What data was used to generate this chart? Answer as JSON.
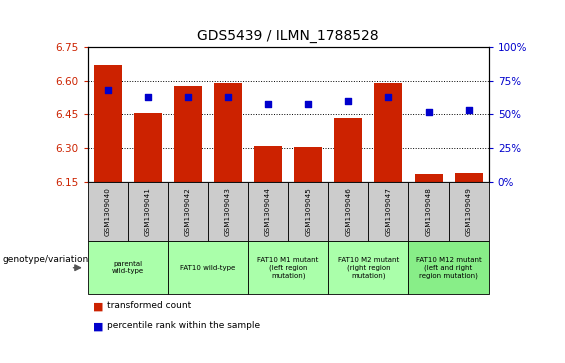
{
  "title": "GDS5439 / ILMN_1788528",
  "samples": [
    "GSM1309040",
    "GSM1309041",
    "GSM1309042",
    "GSM1309043",
    "GSM1309044",
    "GSM1309045",
    "GSM1309046",
    "GSM1309047",
    "GSM1309048",
    "GSM1309049"
  ],
  "transformed_counts": [
    6.67,
    6.455,
    6.575,
    6.59,
    6.31,
    6.305,
    6.435,
    6.59,
    6.185,
    6.19
  ],
  "percentile_ranks": [
    68,
    63,
    63,
    63,
    58,
    58,
    60,
    63,
    52,
    53
  ],
  "ylim_left": [
    6.15,
    6.75
  ],
  "yticks_left": [
    6.15,
    6.3,
    6.45,
    6.6,
    6.75
  ],
  "ylim_right": [
    0,
    100
  ],
  "yticks_right": [
    0,
    25,
    50,
    75,
    100
  ],
  "bar_color": "#cc2200",
  "dot_color": "#0000cc",
  "bar_bottom": 6.15,
  "left_tick_color": "#cc2200",
  "right_tick_color": "#0000cc",
  "genotype_groups": [
    {
      "label": "parental\nwild-type",
      "start": 0,
      "end": 2,
      "color": "#aaffaa"
    },
    {
      "label": "FAT10 wild-type",
      "start": 2,
      "end": 4,
      "color": "#aaffaa"
    },
    {
      "label": "FAT10 M1 mutant\n(left region\nmutation)",
      "start": 4,
      "end": 6,
      "color": "#aaffaa"
    },
    {
      "label": "FAT10 M2 mutant\n(right region\nmutation)",
      "start": 6,
      "end": 8,
      "color": "#aaffaa"
    },
    {
      "label": "FAT10 M12 mutant\n(left and right\nregion mutation)",
      "start": 8,
      "end": 10,
      "color": "#88ee88"
    }
  ],
  "sample_cell_color": "#cccccc",
  "genotype_label": "genotype/variation"
}
